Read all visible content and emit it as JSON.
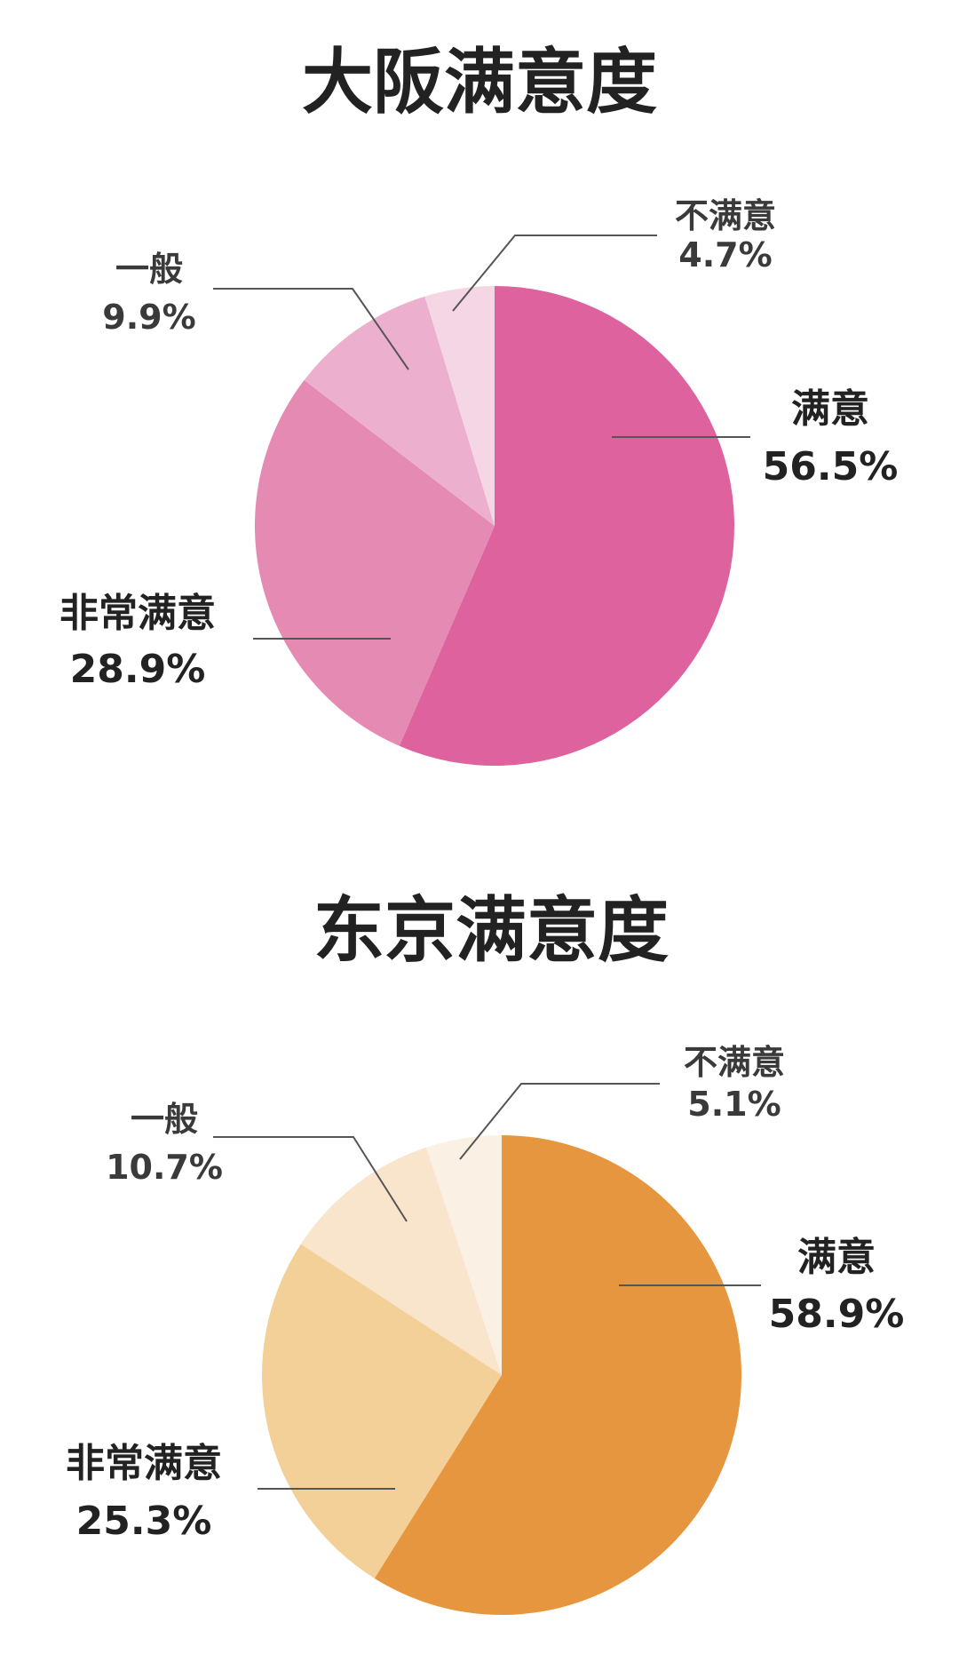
{
  "chart_data": [
    {
      "type": "pie",
      "title": "大阪满意度",
      "labels": [
        "满意",
        "非常满意",
        "一般",
        "不满意"
      ],
      "values": [
        56.5,
        28.9,
        9.9,
        4.7
      ],
      "value_labels": [
        "56.5%",
        "28.9%",
        "9.9%",
        "4.7%"
      ],
      "colors": [
        "#DD629E",
        "#E48AB3",
        "#ECB0CE",
        "#F5D6E5"
      ],
      "start_angle": "12 o'clock",
      "direction": "clockwise"
    },
    {
      "type": "pie",
      "title": "东京满意度",
      "labels": [
        "满意",
        "非常满意",
        "一般",
        "不满意"
      ],
      "values": [
        58.9,
        25.3,
        10.7,
        5.1
      ],
      "value_labels": [
        "58.9%",
        "25.3%",
        "10.7%",
        "5.1%"
      ],
      "colors": [
        "#E6963E",
        "#F3D097",
        "#F9E4CC",
        "#FBF0E4"
      ],
      "start_angle": "12 o'clock",
      "direction": "clockwise"
    }
  ]
}
